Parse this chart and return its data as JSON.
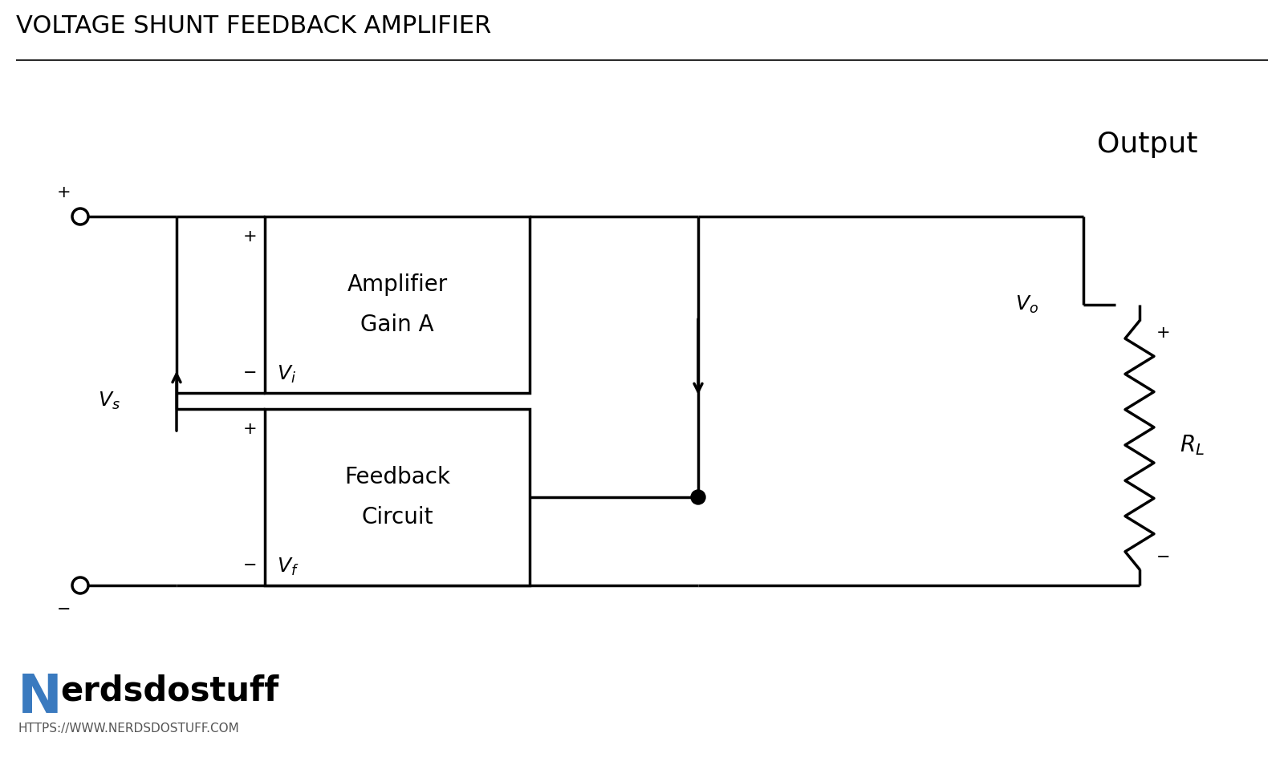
{
  "title": "VOLTAGE SHUNT FEEDBACK AMPLIFIER",
  "bg_color": "#ffffff",
  "line_color": "#000000",
  "title_fontsize": 22,
  "lw": 2.5,
  "logo_N_color": "#3a7abf",
  "logo_text": "erdsdostuff",
  "logo_url": "HTTPS://WWW.NERDSDOSTUFF.COM",
  "amp_label1": "Amplifier",
  "amp_label2": "Gain A",
  "fb_label1": "Feedback",
  "fb_label2": "Circuit",
  "output_label": "Output",
  "Vs_label": "V_s",
  "Vi_label": "V_i",
  "Vo_label": "V_o",
  "Vf_label": "V_f",
  "RL_label": "R_L"
}
